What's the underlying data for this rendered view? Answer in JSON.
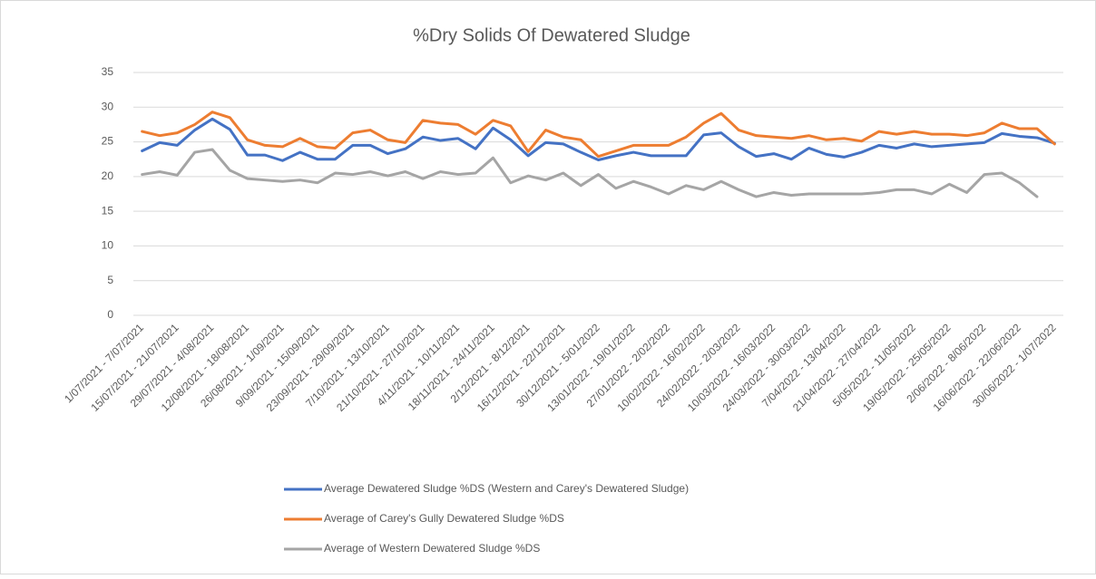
{
  "chart_data": {
    "type": "line",
    "title": "%Dry Solids Of Dewatered Sludge",
    "categories": [
      "1/07/2021 - 7/07/2021",
      null,
      "15/07/2021 - 21/07/2021",
      null,
      "29/07/2021 - 4/08/2021",
      null,
      "12/08/2021 - 18/08/2021",
      null,
      "26/08/2021 - 1/09/2021",
      null,
      "9/09/2021 - 15/09/2021",
      null,
      "23/09/2021 - 29/09/2021",
      null,
      "7/10/2021 - 13/10/2021",
      null,
      "21/10/2021 - 27/10/2021",
      null,
      "4/11/2021 - 10/11/2021",
      null,
      "18/11/2021 - 24/11/2021",
      null,
      "2/12/2021 - 8/12/2021",
      null,
      "16/12/2021 - 22/12/2021",
      null,
      "30/12/2021 - 5/01/2022",
      null,
      "13/01/2022 - 19/01/2022",
      null,
      "27/01/2022 - 2/02/2022",
      null,
      "10/02/2022 - 16/02/2022",
      null,
      "24/02/2022 - 2/03/2022",
      null,
      "10/03/2022 - 16/03/2022",
      null,
      "24/03/2022 - 30/03/2022",
      null,
      "7/04/2022 - 13/04/2022",
      null,
      "21/04/2022 - 27/04/2022",
      null,
      "5/05/2022 - 11/05/2022",
      null,
      "19/05/2022 - 25/05/2022",
      null,
      "2/06/2022 - 8/06/2022",
      null,
      "16/06/2022 - 22/06/2022",
      null,
      "30/06/2022 - 1/07/2022"
    ],
    "series": [
      {
        "name": "Average Dewatered Sludge %DS (Western and Carey's Dewatered Sludge)",
        "color": "#4472c4",
        "values": [
          23.7,
          24.9,
          24.5,
          26.7,
          28.3,
          26.8,
          23.1,
          23.1,
          22.3,
          23.5,
          22.5,
          22.5,
          24.5,
          24.5,
          23.3,
          24.0,
          25.7,
          25.2,
          25.5,
          24.0,
          27.0,
          25.3,
          23.0,
          24.9,
          24.7,
          23.5,
          22.4,
          23.0,
          23.5,
          23.0,
          23.0,
          23.0,
          26.0,
          26.3,
          24.3,
          22.9,
          23.3,
          22.5,
          24.1,
          23.2,
          22.8,
          23.5,
          24.5,
          24.1,
          24.7,
          24.3,
          24.5,
          24.7,
          24.9,
          26.2,
          25.8,
          25.6,
          24.8
        ]
      },
      {
        "name": "Average of Carey's Gully Dewatered Sludge %DS",
        "color": "#ed7d31",
        "values": [
          26.5,
          25.9,
          26.3,
          27.5,
          29.3,
          28.5,
          25.3,
          24.5,
          24.3,
          25.5,
          24.3,
          24.1,
          26.3,
          26.7,
          25.3,
          24.9,
          28.1,
          27.7,
          27.5,
          26.1,
          28.1,
          27.3,
          23.6,
          26.7,
          25.7,
          25.3,
          22.9,
          23.7,
          24.5,
          24.5,
          24.5,
          25.7,
          27.7,
          29.1,
          26.7,
          25.9,
          25.7,
          25.5,
          25.9,
          25.3,
          25.5,
          25.1,
          26.5,
          26.1,
          26.5,
          26.1,
          26.1,
          25.9,
          26.3,
          27.7,
          26.9,
          26.9,
          24.7
        ]
      },
      {
        "name": "Average of Western Dewatered Sludge %DS",
        "color": "#a5a5a5",
        "values": [
          20.3,
          20.7,
          20.2,
          23.5,
          23.9,
          20.9,
          19.7,
          19.5,
          19.3,
          19.5,
          19.1,
          20.5,
          20.3,
          20.7,
          20.1,
          20.7,
          19.7,
          20.7,
          20.3,
          20.5,
          22.7,
          19.1,
          20.1,
          19.5,
          20.5,
          18.7,
          20.3,
          18.3,
          19.3,
          18.5,
          17.5,
          18.7,
          18.1,
          19.3,
          18.1,
          17.1,
          17.7,
          17.3,
          17.5,
          17.5,
          17.5,
          17.5,
          17.7,
          18.1,
          18.1,
          17.5,
          18.9,
          17.7,
          20.3,
          20.5,
          19.1,
          17.1,
          null
        ]
      }
    ],
    "ylim": [
      0,
      35
    ],
    "yticks": [
      0,
      5,
      10,
      15,
      20,
      25,
      30,
      35
    ],
    "grid": true,
    "legend": "bottom"
  }
}
